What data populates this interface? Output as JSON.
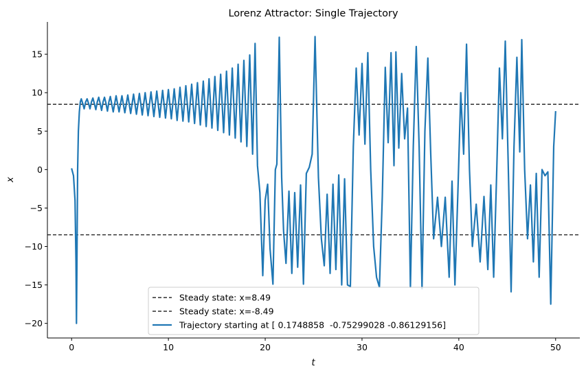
{
  "chart_data": {
    "type": "line",
    "title": "Lorenz Attractor: Single Trajectory",
    "xlabel": "t",
    "ylabel": "x",
    "xlim": [
      -2.5,
      52.5
    ],
    "ylim": [
      -21.9,
      19.2
    ],
    "xticks": [
      0,
      10,
      20,
      30,
      40,
      50
    ],
    "yticks": [
      -20,
      -15,
      -10,
      -5,
      0,
      5,
      10,
      15
    ],
    "grid": false,
    "legend_position": "lower-center",
    "reference_lines": [
      {
        "name": "Steady state: x=8.49",
        "y": 8.49,
        "color": "#000000",
        "style": "dashed"
      },
      {
        "name": "Steady state: x=-8.49",
        "y": -8.49,
        "color": "#000000",
        "style": "dashed"
      }
    ],
    "series": [
      {
        "name": "Trajectory starting at [ 0.1748858  -0.75299028 -0.86129156]",
        "color": "#1f77b4",
        "points": [
          [
            0.0,
            0.17
          ],
          [
            0.2,
            -0.8
          ],
          [
            0.35,
            -4.0
          ],
          [
            0.45,
            -12.0
          ],
          [
            0.5,
            -20.0
          ],
          [
            0.55,
            -12.0
          ],
          [
            0.62,
            0.0
          ],
          [
            0.7,
            5.0
          ],
          [
            0.8,
            7.5
          ],
          [
            0.9,
            8.8
          ],
          [
            1.0,
            9.2
          ],
          [
            1.15,
            8.6
          ],
          [
            1.3,
            7.9
          ],
          [
            1.45,
            8.8
          ],
          [
            1.6,
            9.2
          ],
          [
            1.75,
            8.6
          ],
          [
            1.9,
            7.9
          ],
          [
            2.05,
            8.8
          ],
          [
            2.2,
            9.3
          ],
          [
            2.35,
            8.6
          ],
          [
            2.5,
            7.8
          ],
          [
            2.65,
            8.8
          ],
          [
            2.8,
            9.4
          ],
          [
            2.95,
            8.6
          ],
          [
            3.1,
            7.7
          ],
          [
            3.25,
            8.8
          ],
          [
            3.4,
            9.4
          ],
          [
            3.55,
            8.6
          ],
          [
            3.7,
            7.6
          ],
          [
            3.85,
            8.8
          ],
          [
            4.0,
            9.5
          ],
          [
            4.3,
            7.5
          ],
          [
            4.6,
            9.6
          ],
          [
            4.9,
            7.5
          ],
          [
            5.2,
            9.6
          ],
          [
            5.5,
            7.4
          ],
          [
            5.8,
            9.7
          ],
          [
            6.1,
            7.3
          ],
          [
            6.4,
            9.8
          ],
          [
            6.7,
            7.2
          ],
          [
            7.0,
            9.9
          ],
          [
            7.3,
            7.1
          ],
          [
            7.6,
            10.0
          ],
          [
            7.9,
            7.0
          ],
          [
            8.2,
            10.1
          ],
          [
            8.5,
            6.9
          ],
          [
            8.8,
            10.2
          ],
          [
            9.1,
            6.8
          ],
          [
            9.4,
            10.3
          ],
          [
            9.7,
            6.7
          ],
          [
            10.0,
            10.4
          ],
          [
            10.3,
            6.6
          ],
          [
            10.6,
            10.5
          ],
          [
            10.9,
            6.4
          ],
          [
            11.2,
            10.7
          ],
          [
            11.5,
            6.3
          ],
          [
            11.8,
            10.9
          ],
          [
            12.1,
            6.2
          ],
          [
            12.4,
            11.1
          ],
          [
            12.7,
            6.0
          ],
          [
            13.0,
            11.3
          ],
          [
            13.3,
            5.8
          ],
          [
            13.6,
            11.5
          ],
          [
            13.9,
            5.6
          ],
          [
            14.2,
            11.8
          ],
          [
            14.5,
            5.4
          ],
          [
            14.8,
            12.1
          ],
          [
            15.1,
            5.1
          ],
          [
            15.4,
            12.4
          ],
          [
            15.7,
            4.8
          ],
          [
            16.0,
            12.8
          ],
          [
            16.3,
            4.5
          ],
          [
            16.6,
            13.2
          ],
          [
            16.9,
            4.1
          ],
          [
            17.2,
            13.7
          ],
          [
            17.5,
            3.6
          ],
          [
            17.8,
            14.2
          ],
          [
            18.1,
            3.0
          ],
          [
            18.4,
            14.9
          ],
          [
            18.7,
            2.0
          ],
          [
            18.95,
            16.4
          ],
          [
            19.2,
            0.5
          ],
          [
            19.45,
            -3.0
          ],
          [
            19.75,
            -13.8
          ],
          [
            20.0,
            -4.0
          ],
          [
            20.25,
            -1.9
          ],
          [
            20.5,
            -10.3
          ],
          [
            20.8,
            -14.9
          ],
          [
            21.05,
            0.0
          ],
          [
            21.2,
            0.7
          ],
          [
            21.45,
            17.2
          ],
          [
            21.7,
            -1.0
          ],
          [
            21.9,
            -8.0
          ],
          [
            22.15,
            -12.2
          ],
          [
            22.45,
            -2.8
          ],
          [
            22.75,
            -13.5
          ],
          [
            23.05,
            -3.0
          ],
          [
            23.35,
            -12.7
          ],
          [
            23.65,
            -2.0
          ],
          [
            23.95,
            -14.9
          ],
          [
            24.25,
            -0.5
          ],
          [
            24.55,
            0.3
          ],
          [
            24.85,
            2.0
          ],
          [
            25.15,
            17.3
          ],
          [
            25.5,
            -1.0
          ],
          [
            25.8,
            -9.0
          ],
          [
            26.1,
            -12.5
          ],
          [
            26.4,
            -3.2
          ],
          [
            26.7,
            -13.5
          ],
          [
            27.0,
            -1.9
          ],
          [
            27.3,
            -13.0
          ],
          [
            27.6,
            -0.7
          ],
          [
            27.9,
            -15.0
          ],
          [
            28.2,
            -1.2
          ],
          [
            28.5,
            -15.0
          ],
          [
            28.8,
            -15.2
          ],
          [
            29.1,
            3.0
          ],
          [
            29.4,
            13.2
          ],
          [
            29.7,
            4.5
          ],
          [
            30.0,
            13.8
          ],
          [
            30.3,
            3.3
          ],
          [
            30.6,
            15.2
          ],
          [
            30.9,
            0.0
          ],
          [
            31.2,
            -10.0
          ],
          [
            31.5,
            -14.0
          ],
          [
            31.8,
            -15.3
          ],
          [
            32.1,
            -3.5
          ],
          [
            32.4,
            13.3
          ],
          [
            32.7,
            3.5
          ],
          [
            33.0,
            15.2
          ],
          [
            33.3,
            0.5
          ],
          [
            33.5,
            15.3
          ],
          [
            33.8,
            2.8
          ],
          [
            34.1,
            12.5
          ],
          [
            34.4,
            4.0
          ],
          [
            34.7,
            8.0
          ],
          [
            35.0,
            -15.3
          ],
          [
            35.3,
            3.0
          ],
          [
            35.6,
            16.0
          ],
          [
            35.9,
            3.0
          ],
          [
            36.2,
            -15.5
          ],
          [
            36.5,
            5.0
          ],
          [
            36.8,
            14.5
          ],
          [
            37.1,
            2.0
          ],
          [
            37.4,
            -9.0
          ],
          [
            37.8,
            -3.6
          ],
          [
            38.2,
            -10.0
          ],
          [
            38.6,
            -3.6
          ],
          [
            39.0,
            -14.0
          ],
          [
            39.3,
            -1.5
          ],
          [
            39.6,
            -15.0
          ],
          [
            39.9,
            -3.0
          ],
          [
            40.2,
            10.0
          ],
          [
            40.5,
            2.0
          ],
          [
            40.8,
            16.3
          ],
          [
            41.1,
            0.0
          ],
          [
            41.4,
            -10.0
          ],
          [
            41.8,
            -4.5
          ],
          [
            42.2,
            -12.0
          ],
          [
            42.6,
            -3.5
          ],
          [
            43.0,
            -13.0
          ],
          [
            43.3,
            -2.0
          ],
          [
            43.6,
            -14.0
          ],
          [
            43.9,
            -1.0
          ],
          [
            44.2,
            13.2
          ],
          [
            44.5,
            4.0
          ],
          [
            44.8,
            16.7
          ],
          [
            45.1,
            1.0
          ],
          [
            45.4,
            -15.9
          ],
          [
            45.7,
            3.0
          ],
          [
            46.0,
            14.6
          ],
          [
            46.3,
            2.3
          ],
          [
            46.5,
            16.9
          ],
          [
            46.8,
            0.0
          ],
          [
            47.1,
            -9.0
          ],
          [
            47.4,
            -2.0
          ],
          [
            47.7,
            -12.0
          ],
          [
            48.0,
            -0.5
          ],
          [
            48.3,
            -14.0
          ],
          [
            48.6,
            0.0
          ],
          [
            48.9,
            -0.8
          ],
          [
            49.2,
            -0.3
          ],
          [
            49.5,
            -17.5
          ],
          [
            49.8,
            3.0
          ],
          [
            50.0,
            7.6
          ]
        ]
      }
    ]
  }
}
